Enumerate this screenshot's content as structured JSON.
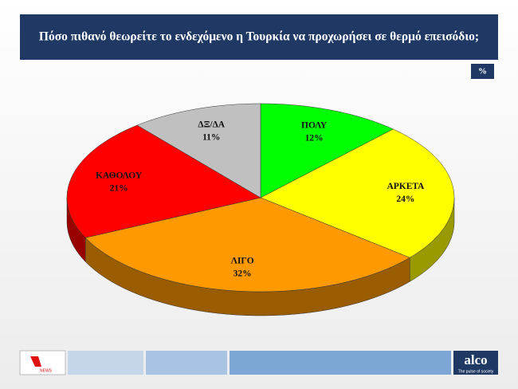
{
  "chart_data": {
    "type": "pie3d",
    "title": "Πόσο πιθανό θεωρείτε το ενδεχόμενο η Τουρκία να προχωρήσει σε θερμό επεισόδιο;",
    "unit": "%",
    "categories": [
      "ΠΟΛΥ",
      "ΑΡΚΕΤΑ",
      "ΛΙΓΟ",
      "ΚΑΘΟΛΟΥ",
      "ΔΞ/ΔΑ"
    ],
    "values": [
      12,
      24,
      32,
      21,
      11
    ],
    "value_labels": [
      "12%",
      "24%",
      "32%",
      "21%",
      "11%"
    ],
    "colors": [
      "#00ff00",
      "#ffff00",
      "#ff9900",
      "#ff0000",
      "#c0c0c0"
    ]
  },
  "footer": {
    "logo": "NEWS",
    "brand": "alco",
    "tagline": "The pulse of society"
  }
}
